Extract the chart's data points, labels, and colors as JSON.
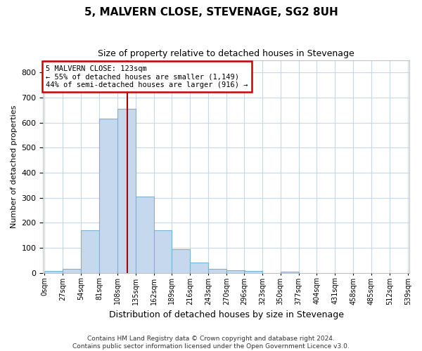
{
  "title": "5, MALVERN CLOSE, STEVENAGE, SG2 8UH",
  "subtitle": "Size of property relative to detached houses in Stevenage",
  "xlabel": "Distribution of detached houses by size in Stevenage",
  "ylabel": "Number of detached properties",
  "bar_color": "#c5d8ed",
  "bar_edge_color": "#7ab4d4",
  "annotation_line_color": "#aa0000",
  "annotation_box_edge_color": "#cc0000",
  "annotation_text_line1": "5 MALVERN CLOSE: 123sqm",
  "annotation_text_line2": "← 55% of detached houses are smaller (1,149)",
  "annotation_text_line3": "44% of semi-detached houses are larger (916) →",
  "property_sqm": 123,
  "bin_width": 27,
  "bin_starts": [
    0,
    27,
    54,
    81,
    108,
    135,
    162,
    189,
    216,
    243,
    270,
    296,
    323,
    350,
    377,
    404,
    431,
    458,
    485,
    512
  ],
  "bin_labels": [
    "0sqm",
    "27sqm",
    "54sqm",
    "81sqm",
    "108sqm",
    "135sqm",
    "162sqm",
    "189sqm",
    "216sqm",
    "243sqm",
    "270sqm",
    "296sqm",
    "323sqm",
    "350sqm",
    "377sqm",
    "404sqm",
    "431sqm",
    "458sqm",
    "485sqm",
    "512sqm",
    "539sqm"
  ],
  "bar_heights": [
    7,
    15,
    170,
    615,
    655,
    305,
    170,
    95,
    40,
    15,
    10,
    8,
    0,
    5,
    0,
    0,
    0,
    0,
    0,
    0
  ],
  "ylim": [
    0,
    850
  ],
  "yticks": [
    0,
    100,
    200,
    300,
    400,
    500,
    600,
    700,
    800
  ],
  "footer_line1": "Contains HM Land Registry data © Crown copyright and database right 2024.",
  "footer_line2": "Contains public sector information licensed under the Open Government Licence v3.0.",
  "background_color": "#ffffff",
  "grid_color": "#c8d8e8",
  "title_fontsize": 11,
  "subtitle_fontsize": 9
}
